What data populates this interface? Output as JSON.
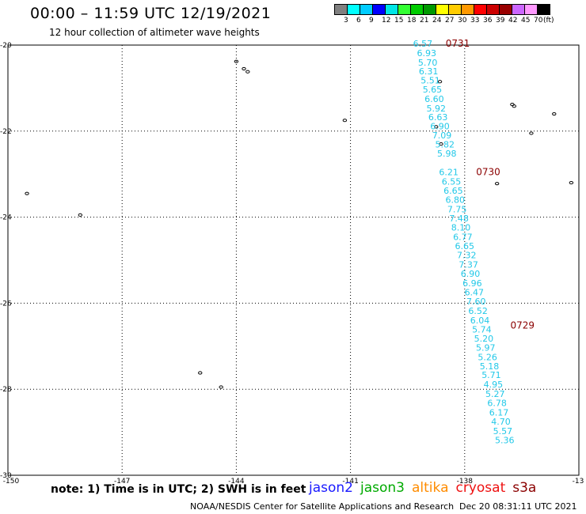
{
  "header": {
    "title": "00:00 – 11:59 UTC 12/19/2021",
    "subtitle": "12 hour collection of altimeter wave heights"
  },
  "legend_scale": {
    "colors": [
      "#808080",
      "#00ffff",
      "#00ccff",
      "#0000ff",
      "#00e6e6",
      "#33ff33",
      "#00cc00",
      "#009900",
      "#ffff00",
      "#ffcc00",
      "#ff9900",
      "#ff0000",
      "#cc0000",
      "#990000",
      "#cc66ff",
      "#ff99ff",
      "#000000"
    ],
    "labels": [
      "3",
      "6",
      "9",
      "12",
      "15",
      "18",
      "21",
      "24",
      "27",
      "30",
      "33",
      "36",
      "39",
      "42",
      "45",
      "70",
      "(ft)"
    ]
  },
  "axes": {
    "y_labels": [
      "-20",
      "-22",
      "-24",
      "-26",
      "-28",
      "-30"
    ],
    "x_labels": [
      "-150",
      "-147",
      "-144",
      "-141",
      "-138",
      "-13"
    ]
  },
  "chart_data": {
    "type": "scatter",
    "xlabel": "",
    "ylabel": "",
    "xlim": [
      -150,
      -135
    ],
    "ylim": [
      -30,
      -20
    ],
    "grid": true,
    "time_labels": [
      {
        "text": "0731",
        "lon": -138.5,
        "lat": -19.96
      },
      {
        "text": "0730",
        "lon": -137.7,
        "lat": -22.95
      },
      {
        "text": "0729",
        "lon": -136.8,
        "lat": -26.52
      }
    ],
    "track": {
      "mission": "cryosat",
      "color": "#22c8e8",
      "points": [
        {
          "v": "6.57",
          "lon": -139.1,
          "lat": -19.96
        },
        {
          "v": "6.93",
          "lon": -139.0,
          "lat": -20.18
        },
        {
          "v": "5.70",
          "lon": -138.97,
          "lat": -20.4
        },
        {
          "v": "6.31",
          "lon": -138.95,
          "lat": -20.61
        },
        {
          "v": "5.51",
          "lon": -138.9,
          "lat": -20.82
        },
        {
          "v": "5.65",
          "lon": -138.85,
          "lat": -21.03
        },
        {
          "v": "6.60",
          "lon": -138.8,
          "lat": -21.25
        },
        {
          "v": "5.92",
          "lon": -138.75,
          "lat": -21.47
        },
        {
          "v": "6.63",
          "lon": -138.7,
          "lat": -21.67
        },
        {
          "v": "6.90",
          "lon": -138.65,
          "lat": -21.88
        },
        {
          "v": "7.09",
          "lon": -138.6,
          "lat": -22.1
        },
        {
          "v": "5.82",
          "lon": -138.52,
          "lat": -22.31
        },
        {
          "v": "5.98",
          "lon": -138.47,
          "lat": -22.52
        },
        {
          "v": "6.21",
          "lon": -138.42,
          "lat": -22.95
        },
        {
          "v": "6.55",
          "lon": -138.35,
          "lat": -23.17
        },
        {
          "v": "6.65",
          "lon": -138.3,
          "lat": -23.38
        },
        {
          "v": "6.80",
          "lon": -138.25,
          "lat": -23.59
        },
        {
          "v": "7.75",
          "lon": -138.2,
          "lat": -23.81
        },
        {
          "v": "7.48",
          "lon": -138.15,
          "lat": -24.03
        },
        {
          "v": "8.10",
          "lon": -138.1,
          "lat": -24.24
        },
        {
          "v": "6.77",
          "lon": -138.05,
          "lat": -24.46
        },
        {
          "v": "6.65",
          "lon": -138.0,
          "lat": -24.67
        },
        {
          "v": "7.32",
          "lon": -137.95,
          "lat": -24.88
        },
        {
          "v": "7.37",
          "lon": -137.9,
          "lat": -25.1
        },
        {
          "v": "6.90",
          "lon": -137.85,
          "lat": -25.31
        },
        {
          "v": "6.96",
          "lon": -137.8,
          "lat": -25.53
        },
        {
          "v": "6.47",
          "lon": -137.75,
          "lat": -25.74
        },
        {
          "v": "7.60",
          "lon": -137.7,
          "lat": -25.96
        },
        {
          "v": "6.52",
          "lon": -137.65,
          "lat": -26.18
        },
        {
          "v": "6.04",
          "lon": -137.6,
          "lat": -26.4
        },
        {
          "v": "5.74",
          "lon": -137.55,
          "lat": -26.61
        },
        {
          "v": "5.20",
          "lon": -137.5,
          "lat": -26.82
        },
        {
          "v": "5.97",
          "lon": -137.45,
          "lat": -27.03
        },
        {
          "v": "5.26",
          "lon": -137.4,
          "lat": -27.25
        },
        {
          "v": "5.18",
          "lon": -137.35,
          "lat": -27.46
        },
        {
          "v": "5.71",
          "lon": -137.3,
          "lat": -27.67
        },
        {
          "v": "4.95",
          "lon": -137.25,
          "lat": -27.89
        },
        {
          "v": "5.27",
          "lon": -137.2,
          "lat": -28.11
        },
        {
          "v": "6.78",
          "lon": -137.15,
          "lat": -28.32
        },
        {
          "v": "6.17",
          "lon": -137.1,
          "lat": -28.54
        },
        {
          "v": "4.70",
          "lon": -137.05,
          "lat": -28.75
        },
        {
          "v": "5.57",
          "lon": -137.0,
          "lat": -28.97
        },
        {
          "v": "5.36",
          "lon": -136.95,
          "lat": -29.18
        }
      ]
    },
    "islands": [
      {
        "lon": -144.0,
        "lat": -20.38
      },
      {
        "lon": -143.8,
        "lat": -20.55
      },
      {
        "lon": -143.7,
        "lat": -20.62
      },
      {
        "lon": -141.15,
        "lat": -21.75
      },
      {
        "lon": -138.65,
        "lat": -20.85
      },
      {
        "lon": -138.75,
        "lat": -21.9
      },
      {
        "lon": -138.62,
        "lat": -22.3
      },
      {
        "lon": -136.75,
        "lat": -21.38
      },
      {
        "lon": -136.7,
        "lat": -21.42
      },
      {
        "lon": -136.25,
        "lat": -22.05
      },
      {
        "lon": -135.65,
        "lat": -21.6
      },
      {
        "lon": -137.15,
        "lat": -23.22
      },
      {
        "lon": -135.2,
        "lat": -23.2
      },
      {
        "lon": -149.5,
        "lat": -23.45
      },
      {
        "lon": -148.1,
        "lat": -23.95
      },
      {
        "lon": -144.95,
        "lat": -27.62
      },
      {
        "lon": -144.4,
        "lat": -27.95
      }
    ]
  },
  "footer": {
    "note": "note: 1) Time is in UTC; 2) SWH is in feet",
    "missions": [
      {
        "name": "jason2",
        "color": "#1a1aff"
      },
      {
        "name": "jason3",
        "color": "#00aa00"
      },
      {
        "name": "altika",
        "color": "#ff8c00"
      },
      {
        "name": "cryosat",
        "color": "#ee1111"
      },
      {
        "name": "s3a",
        "color": "#8b0000"
      }
    ],
    "credit": "NOAA/NESDIS Center for Satellite Applications and Research",
    "timestamp": "Dec 20 08:31:11 UTC 2021"
  }
}
